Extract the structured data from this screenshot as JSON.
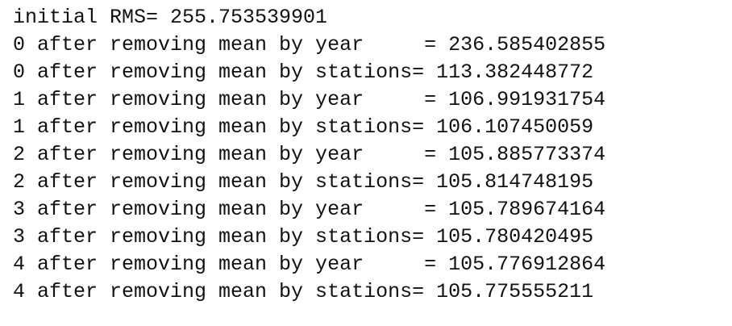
{
  "output": {
    "lines": [
      "initial RMS= 255.753539901",
      "0 after removing mean by year     = 236.585402855",
      "0 after removing mean by stations= 113.382448772",
      "1 after removing mean by year     = 106.991931754",
      "1 after removing mean by stations= 106.107450059",
      "2 after removing mean by year     = 105.885773374",
      "2 after removing mean by stations= 105.814748195",
      "3 after removing mean by year     = 105.789674164",
      "3 after removing mean by stations= 105.780420495",
      "4 after removing mean by year     = 105.776912864",
      "4 after removing mean by stations= 105.775555211"
    ]
  }
}
